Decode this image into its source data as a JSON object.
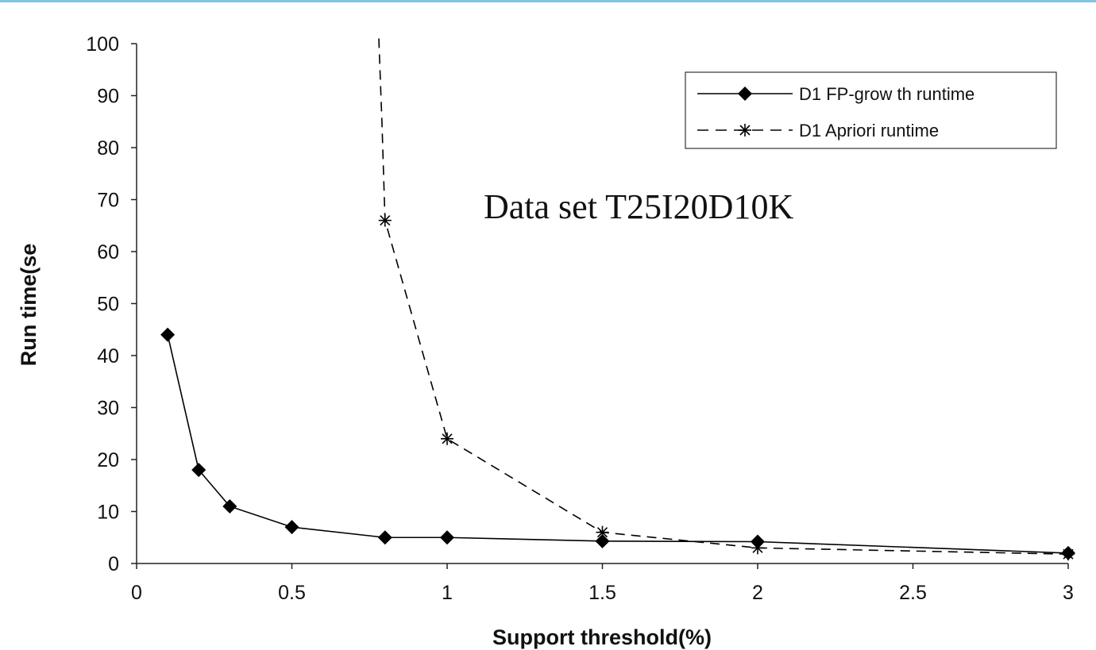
{
  "chart_data": {
    "type": "line",
    "xlabel": "Support threshold(%)",
    "ylabel": "Run time(se",
    "xlim": [
      0,
      3
    ],
    "ylim": [
      0,
      100
    ],
    "xticks": [
      0,
      0.5,
      1,
      1.5,
      2,
      2.5,
      3
    ],
    "xtick_labels": [
      "0",
      "0.5",
      "1",
      "1.5",
      "2",
      "2.5",
      "3"
    ],
    "yticks": [
      0,
      10,
      20,
      30,
      40,
      50,
      60,
      70,
      80,
      90,
      100
    ],
    "ytick_labels": [
      "0",
      "10",
      "20",
      "30",
      "40",
      "50",
      "60",
      "70",
      "80",
      "90",
      "100"
    ],
    "grid": false,
    "legend_position": "top-right",
    "annotation": "Data set T25I20D10K",
    "series": [
      {
        "name": "D1 FP-grow th runtime",
        "style": "solid",
        "marker": "diamond",
        "color": "#000000",
        "x": [
          0.1,
          0.2,
          0.3,
          0.5,
          0.8,
          1,
          1.5,
          2,
          3
        ],
        "y": [
          44,
          18,
          11,
          7,
          5,
          5,
          4.3,
          4.2,
          2
        ]
      },
      {
        "name": "D1 Apriori runtime",
        "style": "dashed",
        "marker": "asterisk",
        "color": "#000000",
        "x": [
          0.78,
          0.79,
          0.8,
          1,
          1.5,
          2,
          3
        ],
        "y": [
          101,
          85,
          66,
          24,
          6,
          3,
          1.8
        ],
        "marked_x": [
          0.8,
          1,
          1.5,
          2,
          3
        ]
      }
    ]
  }
}
